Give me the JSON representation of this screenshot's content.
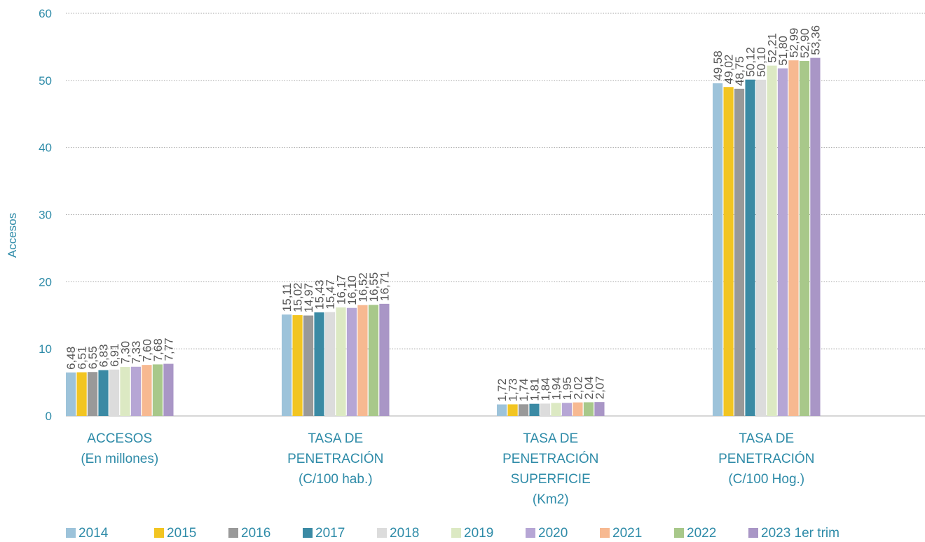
{
  "colors": {
    "text": "#2E8BA8",
    "data_label": "#555555",
    "grid": "#A6A6A6",
    "axis": "#BFBFBF"
  },
  "chart_data": {
    "type": "bar",
    "title": "",
    "xlabel": "",
    "ylabel": "Accesos",
    "ylim": [
      0,
      60
    ],
    "yticks": [
      0,
      10,
      20,
      30,
      40,
      50,
      60
    ],
    "grid": true,
    "grid_style": "dotted",
    "legend_position": "bottom",
    "categories": [
      [
        "ACCESOS",
        "(En millones)"
      ],
      [
        "TASA DE",
        "PENETRACIÓN",
        "(C/100 hab.)"
      ],
      [
        "TASA DE",
        "PENETRACIÓN",
        "SUPERFICIE",
        "(Km2)"
      ],
      [
        "TASA DE",
        "PENETRACIÓN",
        "(C/100 Hog.)"
      ]
    ],
    "series": [
      {
        "name": "2014",
        "color": "#9DC3DA",
        "values": [
          6.48,
          15.11,
          1.72,
          49.58
        ],
        "labels": [
          "6,48",
          "15,11",
          "1,72",
          "49,58"
        ]
      },
      {
        "name": "2015",
        "color": "#F2C522",
        "values": [
          6.51,
          15.02,
          1.73,
          49.02
        ],
        "labels": [
          "6,51",
          "15,02",
          "1,73",
          "49,02"
        ]
      },
      {
        "name": "2016",
        "color": "#999999",
        "values": [
          6.55,
          14.97,
          1.74,
          48.75
        ],
        "labels": [
          "6,55",
          "14,97",
          "1,74",
          "48,75"
        ]
      },
      {
        "name": "2017",
        "color": "#3B8AA4",
        "values": [
          6.83,
          15.43,
          1.81,
          50.12
        ],
        "labels": [
          "6,83",
          "15,43",
          "1,81",
          "50,12"
        ]
      },
      {
        "name": "2018",
        "color": "#DCDCDC",
        "values": [
          6.91,
          15.47,
          1.84,
          50.1
        ],
        "labels": [
          "6,91",
          "15,47",
          "1,84",
          "50,10"
        ]
      },
      {
        "name": "2019",
        "color": "#DCE9C3",
        "values": [
          7.3,
          16.17,
          1.94,
          52.21
        ],
        "labels": [
          "7,30",
          "16,17",
          "1,94",
          "52,21"
        ]
      },
      {
        "name": "2020",
        "color": "#B6A6D5",
        "values": [
          7.33,
          16.1,
          1.95,
          51.8
        ],
        "labels": [
          "7,33",
          "16,10",
          "1,95",
          "51,80"
        ]
      },
      {
        "name": "2021",
        "color": "#F7B991",
        "values": [
          7.6,
          16.52,
          2.02,
          52.99
        ],
        "labels": [
          "7,60",
          "16,52",
          "2,02",
          "52,99"
        ]
      },
      {
        "name": "2022",
        "color": "#A8C88A",
        "values": [
          7.68,
          16.55,
          2.04,
          52.9
        ],
        "labels": [
          "7,68",
          "16,55",
          "2,04",
          "52,90"
        ]
      },
      {
        "name": "2023 1er trim",
        "color": "#A996C6",
        "values": [
          7.77,
          16.71,
          2.07,
          53.36
        ],
        "labels": [
          "7,77",
          "16,71",
          "2,07",
          "53,36"
        ]
      }
    ]
  }
}
